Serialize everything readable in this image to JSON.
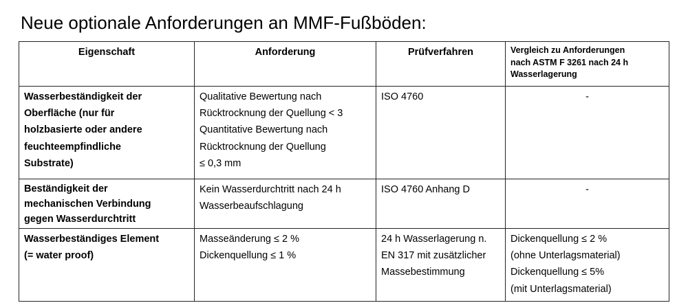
{
  "title": "Neue optionale Anforderungen an MMF-Fußböden:",
  "table": {
    "headers": [
      [
        "Eigenschaft"
      ],
      [
        "Anforderung"
      ],
      [
        "Prüfverfahren"
      ],
      [
        "Vergleich zu Anforderungen",
        "nach ASTM F 3261 nach 24 h",
        "Wasserlagerung"
      ]
    ],
    "rows": [
      {
        "eigenschaft": [
          "Wasserbeständigkeit der",
          "Oberfläche (nur für",
          "holzbasierte oder andere",
          "feuchteempfindliche",
          "Substrate)"
        ],
        "anforderung": [
          "Qualitative Bewertung nach",
          "Rücktrocknung der Quellung < 3",
          "Quantitative Bewertung nach",
          "Rücktrocknung der Quellung",
          "≤ 0,3 mm"
        ],
        "pruefverfahren": [
          "ISO 4760"
        ],
        "vergleich": [
          "-"
        ]
      },
      {
        "eigenschaft": [
          "Beständigkeit der",
          "mechanischen Verbindung",
          "gegen Wasserdurchtritt"
        ],
        "anforderung": [
          "Kein Wasserdurchtritt nach 24 h",
          "Wasserbeaufschlagung"
        ],
        "pruefverfahren": [
          "ISO 4760 Anhang D"
        ],
        "vergleich": [
          "-"
        ]
      },
      {
        "eigenschaft": [
          "Wasserbeständiges Element",
          "(= water proof)"
        ],
        "anforderung": [
          "Masseänderung ≤ 2 %",
          "Dickenquellung ≤ 1  %"
        ],
        "pruefverfahren": [
          "24 h Wasserlagerung n.",
          "EN 317 mit zusätzlicher",
          "Massebestimmung"
        ],
        "vergleich": [
          "Dickenquellung ≤ 2  %",
          "(ohne Unterlagsmaterial)",
          "Dickenquellung ≤ 5%",
          "(mit Unterlagsmaterial)"
        ]
      }
    ]
  }
}
